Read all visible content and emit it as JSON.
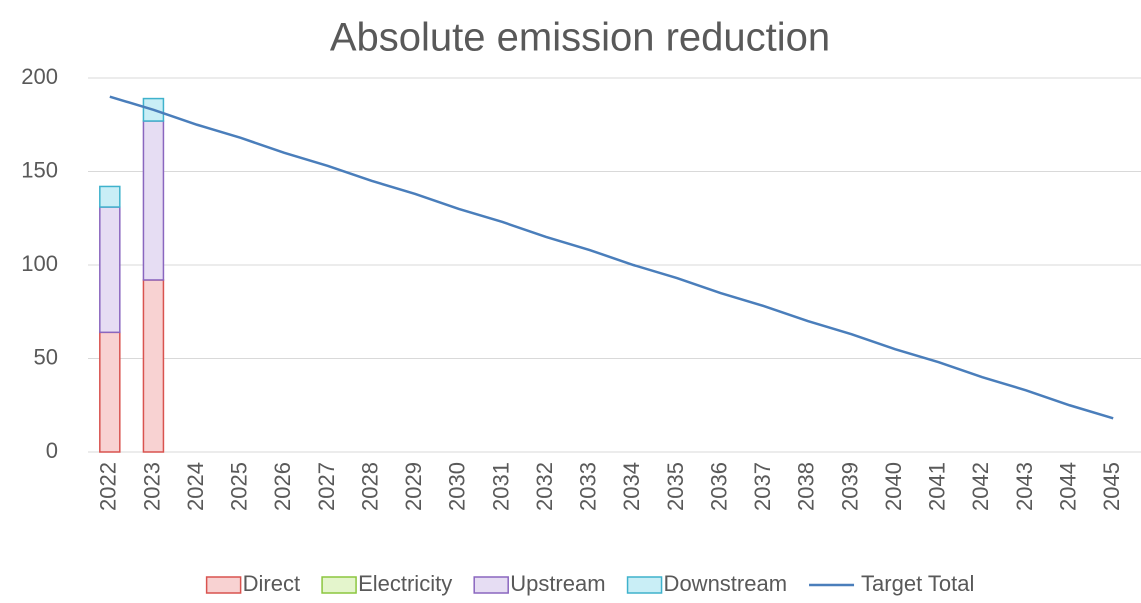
{
  "chart_data": {
    "type": "bar",
    "stacked": true,
    "title": "Absolute emission reduction",
    "categories": [
      "2022",
      "2023",
      "2024",
      "2025",
      "2026",
      "2027",
      "2028",
      "2029",
      "2030",
      "2031",
      "2032",
      "2033",
      "2034",
      "2035",
      "2036",
      "2037",
      "2038",
      "2039",
      "2040",
      "2041",
      "2042",
      "2043",
      "2044",
      "2045"
    ],
    "series": [
      {
        "name": "Direct",
        "type": "bar",
        "color": "#f8d2d2",
        "edge": "#d9534f",
        "values": [
          64,
          92,
          null,
          null,
          null,
          null,
          null,
          null,
          null,
          null,
          null,
          null,
          null,
          null,
          null,
          null,
          null,
          null,
          null,
          null,
          null,
          null,
          null,
          null
        ]
      },
      {
        "name": "Electricity",
        "type": "bar",
        "color": "#e4f5cc",
        "edge": "#8cc63f",
        "values": [
          0,
          0,
          null,
          null,
          null,
          null,
          null,
          null,
          null,
          null,
          null,
          null,
          null,
          null,
          null,
          null,
          null,
          null,
          null,
          null,
          null,
          null,
          null,
          null
        ]
      },
      {
        "name": "Upstream",
        "type": "bar",
        "color": "#e6ddf3",
        "edge": "#8a66bf",
        "values": [
          67,
          85,
          null,
          null,
          null,
          null,
          null,
          null,
          null,
          null,
          null,
          null,
          null,
          null,
          null,
          null,
          null,
          null,
          null,
          null,
          null,
          null,
          null,
          null
        ]
      },
      {
        "name": "Downstream",
        "type": "bar",
        "color": "#c9eef6",
        "edge": "#3fb2cc",
        "values": [
          11,
          12,
          null,
          null,
          null,
          null,
          null,
          null,
          null,
          null,
          null,
          null,
          null,
          null,
          null,
          null,
          null,
          null,
          null,
          null,
          null,
          null,
          null,
          null
        ]
      },
      {
        "name": "Target Total",
        "type": "line",
        "color": "#4a7ebb",
        "values": [
          190,
          183,
          175,
          168,
          160,
          153,
          145,
          138,
          130,
          123,
          115,
          108,
          100,
          93,
          85,
          78,
          70,
          63,
          55,
          48,
          40,
          33,
          25,
          18
        ]
      }
    ],
    "ylim": [
      0,
      200
    ],
    "yticks": [
      0,
      50,
      100,
      150,
      200
    ],
    "grid": true,
    "legend": "bottom"
  }
}
